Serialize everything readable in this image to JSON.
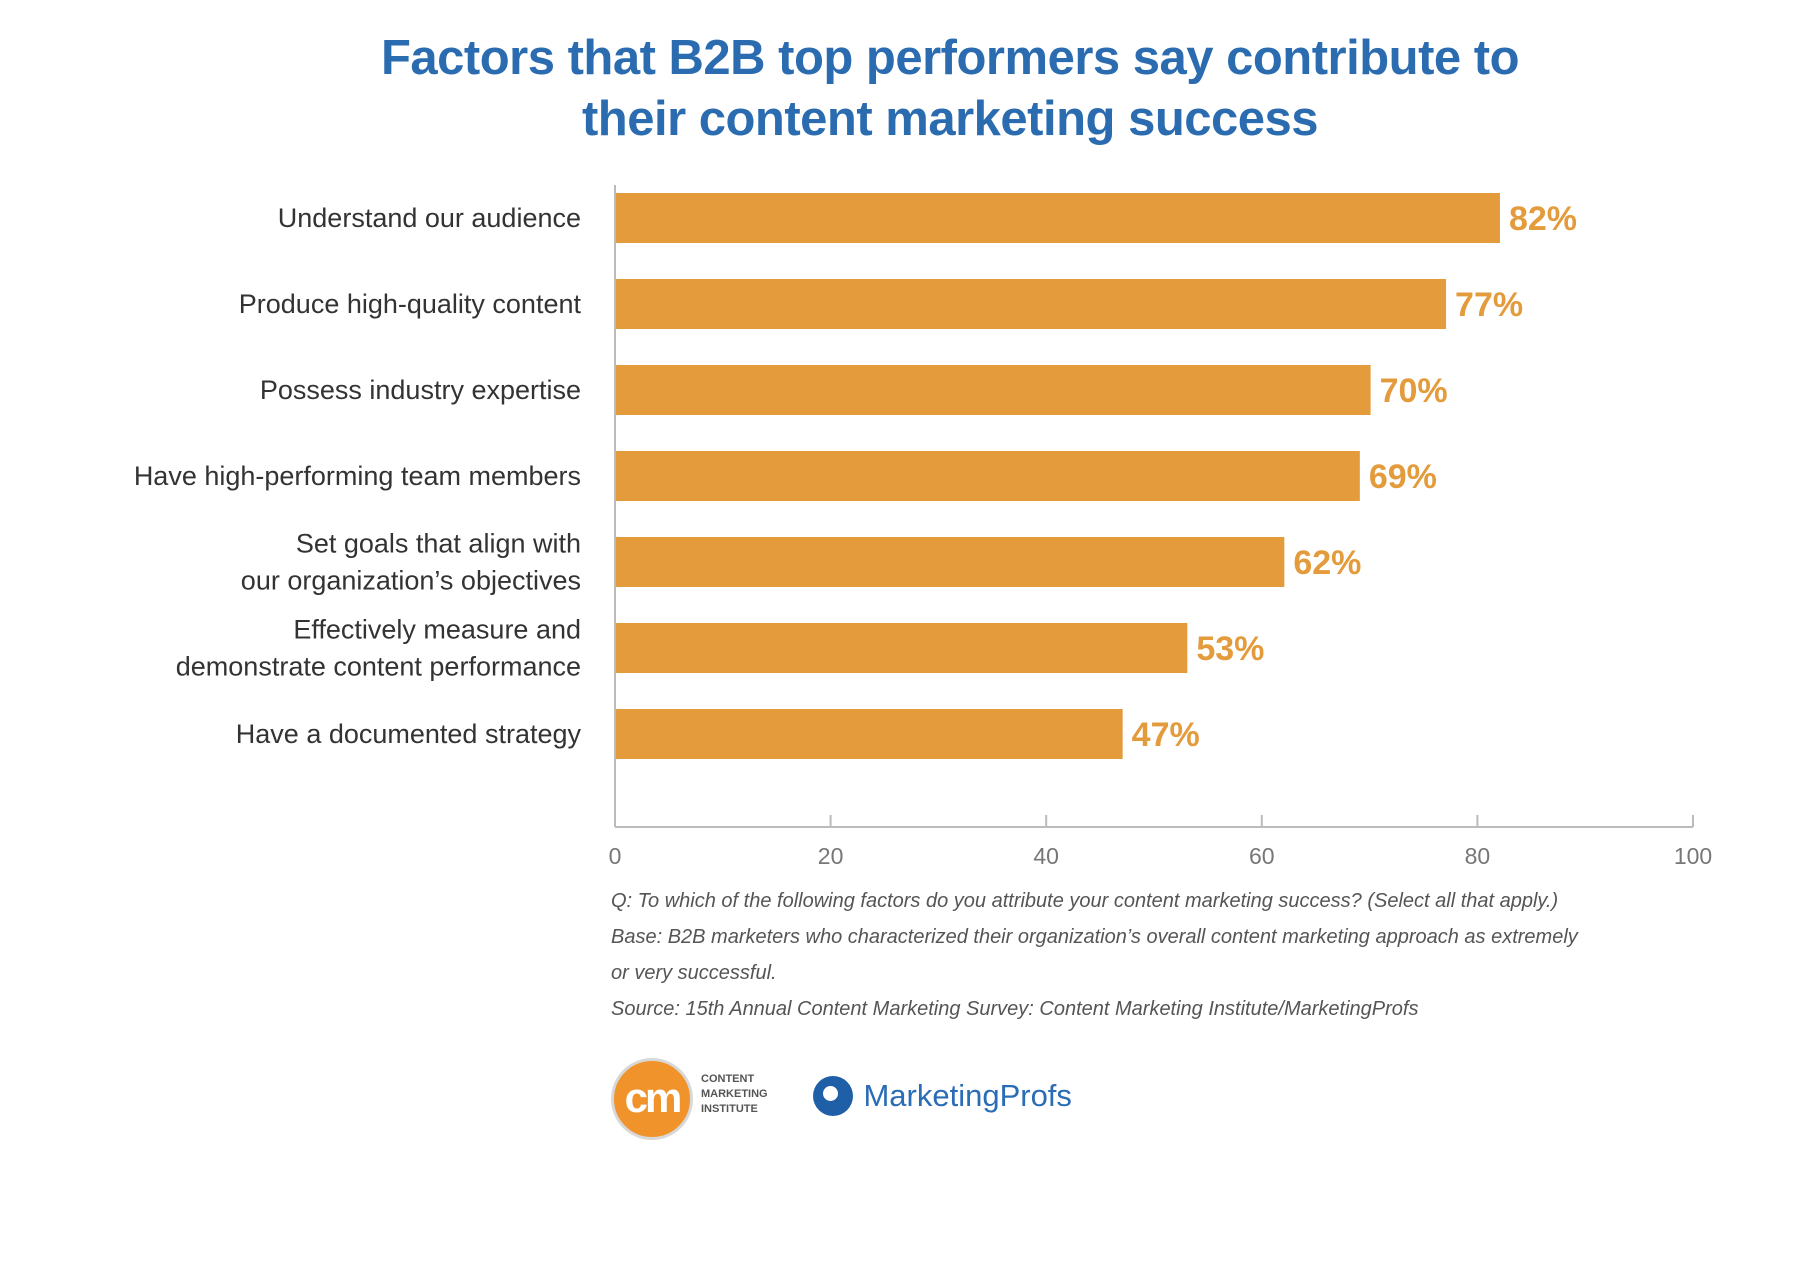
{
  "chart_data": {
    "type": "bar",
    "orientation": "horizontal",
    "title": [
      "Factors that B2B top performers say contribute to",
      "their content marketing success"
    ],
    "categories": [
      [
        "Understand our audience"
      ],
      [
        "Produce high-quality content"
      ],
      [
        "Possess industry expertise"
      ],
      [
        "Have high-performing team members"
      ],
      [
        "Set goals that align with",
        "our organization’s objectives"
      ],
      [
        "Effectively measure and",
        "demonstrate content performance"
      ],
      [
        "Have a documented strategy"
      ]
    ],
    "values": [
      82,
      77,
      70,
      69,
      62,
      53,
      47
    ],
    "value_labels": [
      "82%",
      "77%",
      "70%",
      "69%",
      "62%",
      "53%",
      "47%"
    ],
    "xlim": [
      0,
      100
    ],
    "xticks": [
      0,
      20,
      40,
      60,
      80,
      100
    ],
    "xlabel": "",
    "ylabel": "",
    "grid": false,
    "legend": "none"
  },
  "colors": {
    "title": "#2b6cb0",
    "bar": "#e39b3c",
    "value_label": "#e39b3c",
    "axis": "#bbbbbb"
  },
  "footnotes": [
    "Q: To which of the following factors do you attribute your content marketing success? (Select all that apply.)",
    "Base: B2B marketers who characterized their organization’s overall content marketing approach as extremely",
    "or very successful.",
    "Source: 15th Annual Content Marketing Survey: Content Marketing Institute/MarketingProfs"
  ],
  "logos": {
    "cmi_mark": "cm",
    "cmi_text": [
      "Content",
      "Marketing",
      "Institute"
    ],
    "marketingprofs": "MarketingProfs"
  }
}
